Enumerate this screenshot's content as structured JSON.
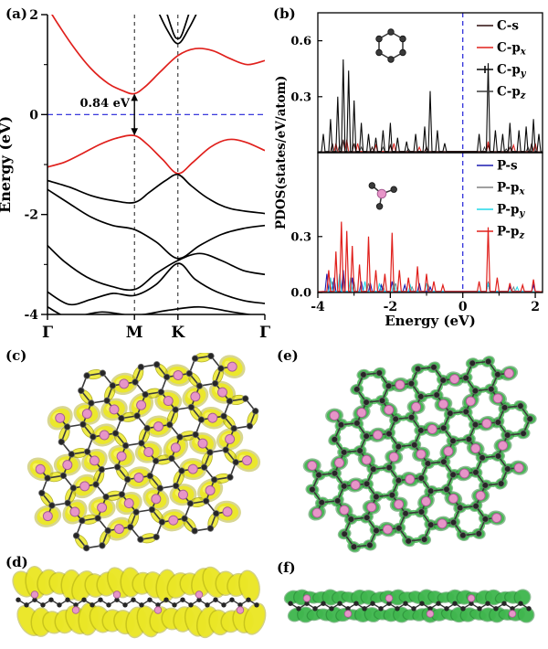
{
  "panels": {
    "a": {
      "label": "(a)"
    },
    "b": {
      "label": "(b)"
    },
    "c": {
      "label": "(c)"
    },
    "d": {
      "label": "(d)"
    },
    "e": {
      "label": "(e)"
    },
    "f": {
      "label": "(f)"
    }
  },
  "structure": {
    "atoms": {
      "carbon": {
        "name": "carbon",
        "color": "#262626"
      },
      "phosphorus": {
        "name": "phosphorus",
        "color": "#e795c8"
      }
    },
    "isosurfaces": {
      "yellow": {
        "fill": "#ece827",
        "edge": "#a8a40a",
        "hi": "#f8f565"
      },
      "green": {
        "fill": "#41b94f",
        "edge": "#1d7a2c",
        "hi": "#8fdd96"
      }
    }
  },
  "chart_data": [
    {
      "id": "band-structure",
      "type": "line",
      "ylabel": "Energy (eV)",
      "ylim": [
        -4,
        2
      ],
      "yticks": {
        "major": [
          2,
          0,
          -2,
          -4
        ],
        "minor": [
          1,
          -1,
          -3
        ]
      },
      "kpath": {
        "labels": [
          "Γ",
          "M",
          "K",
          "Γ"
        ],
        "positions": [
          0,
          0.4,
          0.6,
          1
        ]
      },
      "fermi_level": 0,
      "fermi_color": "#2020d8",
      "annotations": {
        "band_gap": {
          "text": "0.84 eV",
          "value_eV": 0.84,
          "at_k": 0.4,
          "from": -0.42,
          "to": 0.42
        }
      },
      "series": [
        {
          "name": "conduction-band",
          "color": "#e0201c",
          "k": [
            0,
            0.05,
            0.12,
            0.2,
            0.28,
            0.35,
            0.4,
            0.45,
            0.52,
            0.6,
            0.68,
            0.76,
            0.84,
            0.92,
            1
          ],
          "E": [
            2.15,
            1.8,
            1.35,
            0.92,
            0.62,
            0.47,
            0.42,
            0.56,
            0.86,
            1.18,
            1.32,
            1.28,
            1.12,
            1.0,
            1.08
          ]
        },
        {
          "name": "valence-band",
          "color": "#e0201c",
          "k": [
            0,
            0.08,
            0.16,
            0.24,
            0.32,
            0.4,
            0.46,
            0.53,
            0.6,
            0.67,
            0.75,
            0.83,
            0.91,
            1
          ],
          "E": [
            -1.05,
            -0.95,
            -0.78,
            -0.6,
            -0.47,
            -0.42,
            -0.6,
            -0.9,
            -1.18,
            -0.95,
            -0.65,
            -0.5,
            -0.55,
            -0.72
          ]
        },
        {
          "name": "black-upper-1",
          "color": "#000000",
          "k": [
            0.5,
            0.55,
            0.6,
            0.65,
            0.7
          ],
          "E": [
            2.15,
            1.7,
            1.42,
            1.72,
            2.15
          ]
        },
        {
          "name": "black-upper-2",
          "color": "#000000",
          "k": [
            0.54,
            0.58,
            0.6,
            0.62,
            0.66
          ],
          "E": [
            2.15,
            1.62,
            1.52,
            1.62,
            2.15
          ]
        },
        {
          "name": "black-valence-1",
          "color": "#000000",
          "k": [
            0,
            0.1,
            0.2,
            0.3,
            0.4,
            0.47,
            0.54,
            0.6,
            0.66,
            0.74,
            0.84,
            1
          ],
          "E": [
            -1.32,
            -1.45,
            -1.62,
            -1.72,
            -1.76,
            -1.55,
            -1.33,
            -1.2,
            -1.42,
            -1.68,
            -1.88,
            -1.98
          ]
        },
        {
          "name": "black-valence-2",
          "color": "#000000",
          "k": [
            0,
            0.1,
            0.2,
            0.3,
            0.4,
            0.5,
            0.6,
            0.7,
            0.8,
            0.9,
            1
          ],
          "E": [
            -1.5,
            -1.78,
            -2.05,
            -2.22,
            -2.3,
            -2.55,
            -2.88,
            -2.62,
            -2.4,
            -2.28,
            -2.22
          ]
        },
        {
          "name": "black-valence-3",
          "color": "#000000",
          "k": [
            0,
            0.08,
            0.18,
            0.28,
            0.4,
            0.5,
            0.6,
            0.7,
            0.8,
            0.9,
            1
          ],
          "E": [
            -2.62,
            -2.95,
            -3.25,
            -3.42,
            -3.5,
            -3.18,
            -2.92,
            -2.78,
            -2.92,
            -3.12,
            -3.2
          ]
        },
        {
          "name": "black-valence-4",
          "color": "#000000",
          "k": [
            0,
            0.1,
            0.2,
            0.3,
            0.4,
            0.5,
            0.6,
            0.68,
            0.78,
            0.9,
            1
          ],
          "E": [
            -3.55,
            -3.8,
            -3.7,
            -3.58,
            -3.62,
            -3.4,
            -2.98,
            -3.3,
            -3.55,
            -3.72,
            -3.78
          ]
        },
        {
          "name": "black-valence-5",
          "color": "#000000",
          "k": [
            0,
            0.1,
            0.25,
            0.4,
            0.55,
            0.7,
            0.85,
            1
          ],
          "E": [
            -3.85,
            -4.05,
            -3.95,
            -4.02,
            -3.92,
            -3.85,
            -3.95,
            -4.05
          ]
        }
      ]
    },
    {
      "id": "pdos-C",
      "type": "line",
      "ylabel": "PDOS(states/eV/atom)",
      "xlim": [
        -4,
        2.2
      ],
      "ylim": [
        0,
        0.75
      ],
      "fermi_color": "#2020d8",
      "yticks": [
        {
          "v": 0.6,
          "label": "0.6"
        },
        {
          "v": 0.3,
          "label": "0.3"
        }
      ],
      "inset_icon": "carbon-hexagon-ring",
      "series": [
        {
          "name": "C-s",
          "label_main": "C-s",
          "label_sub": "",
          "color": "#2d0d0d",
          "z": 1,
          "width": 1,
          "peaks": [
            [
              -3.6,
              0.05
            ],
            [
              -3.3,
              0.07
            ],
            [
              -3.0,
              0.05
            ],
            [
              -2.5,
              0.03
            ],
            [
              -2.0,
              0.04
            ],
            [
              -1.0,
              0.03
            ],
            [
              0.7,
              0.04
            ],
            [
              1.3,
              0.03
            ],
            [
              1.9,
              0.05
            ]
          ]
        },
        {
          "name": "C-px",
          "label_main": "C-p",
          "label_sub": "x",
          "color": "#e0201c",
          "z": 2,
          "width": 1,
          "peaks": [
            [
              -3.5,
              0.05
            ],
            [
              -3.2,
              0.07
            ],
            [
              -2.9,
              0.05
            ],
            [
              -2.4,
              0.04
            ],
            [
              -1.9,
              0.05
            ],
            [
              -1.2,
              0.03
            ],
            [
              0.7,
              0.06
            ],
            [
              1.4,
              0.04
            ],
            [
              2.0,
              0.05
            ]
          ]
        },
        {
          "name": "C-py",
          "label_main": "C-p",
          "label_sub": "y",
          "color": "#0a0a0a",
          "z": 4,
          "width": 1.1,
          "marker": true,
          "peaks": [
            [
              -3.85,
              0.1
            ],
            [
              -3.65,
              0.18
            ],
            [
              -3.45,
              0.3
            ],
            [
              -3.3,
              0.5
            ],
            [
              -3.15,
              0.44
            ],
            [
              -3.0,
              0.28
            ],
            [
              -2.8,
              0.16
            ],
            [
              -2.6,
              0.1
            ],
            [
              -2.4,
              0.08
            ],
            [
              -2.2,
              0.12
            ],
            [
              -2.0,
              0.16
            ],
            [
              -1.8,
              0.08
            ],
            [
              -1.55,
              0.06
            ],
            [
              -1.3,
              0.1
            ],
            [
              -1.05,
              0.14
            ],
            [
              -0.9,
              0.33
            ],
            [
              -0.7,
              0.12
            ],
            [
              -0.5,
              0.05
            ],
            [
              0.45,
              0.1
            ],
            [
              0.7,
              0.48
            ],
            [
              0.9,
              0.12
            ],
            [
              1.1,
              0.1
            ],
            [
              1.3,
              0.16
            ],
            [
              1.55,
              0.12
            ],
            [
              1.75,
              0.14
            ],
            [
              1.95,
              0.18
            ],
            [
              2.1,
              0.1
            ]
          ]
        },
        {
          "name": "C-pz",
          "label_main": "C-p",
          "label_sub": "z",
          "color": "#3c3c3c",
          "z": 3,
          "width": 0.9,
          "peaks": [
            [
              -3.4,
              0.04
            ],
            [
              -2.8,
              0.03
            ],
            [
              -2.2,
              0.03
            ],
            [
              -1.5,
              0.02
            ],
            [
              0.6,
              0.03
            ],
            [
              1.2,
              0.02
            ],
            [
              1.8,
              0.03
            ]
          ]
        }
      ]
    },
    {
      "id": "pdos-P",
      "type": "line",
      "xlabel": "Energy (eV)",
      "xlim": [
        -4,
        2.2
      ],
      "ylim": [
        0,
        0.75
      ],
      "fermi_color": "#2020d8",
      "xticks": {
        "major": [
          -4,
          -2,
          0,
          2
        ],
        "minor": [
          -3,
          -1,
          1
        ]
      },
      "yticks": [
        {
          "v": 0.3,
          "label": "0.3"
        },
        {
          "v": 0.0,
          "label": "0.0"
        }
      ],
      "inset_icon": "phosphorus-with-three-carbons",
      "series": [
        {
          "name": "P-s",
          "label_main": "P-s",
          "label_sub": "",
          "color": "#1c1cb0",
          "z": 2,
          "width": 1.1,
          "peaks": [
            [
              -3.75,
              0.1
            ],
            [
              -3.55,
              0.08
            ],
            [
              -3.3,
              0.12
            ],
            [
              -3.05,
              0.08
            ],
            [
              -2.8,
              0.06
            ],
            [
              -2.55,
              0.05
            ],
            [
              -2.25,
              0.04
            ],
            [
              -1.95,
              0.06
            ],
            [
              -1.6,
              0.04
            ],
            [
              -1.2,
              0.05
            ],
            [
              -0.9,
              0.03
            ],
            [
              0.7,
              0.05
            ],
            [
              1.3,
              0.03
            ],
            [
              1.95,
              0.04
            ]
          ]
        },
        {
          "name": "P-px",
          "label_main": "P-p",
          "label_sub": "x",
          "color": "#808080",
          "z": 1,
          "width": 0.9,
          "peaks": [
            [
              -3.6,
              0.06
            ],
            [
              -3.3,
              0.08
            ],
            [
              -3.0,
              0.06
            ],
            [
              -2.6,
              0.05
            ],
            [
              -2.2,
              0.04
            ],
            [
              -1.85,
              0.05
            ],
            [
              -1.4,
              0.03
            ],
            [
              -0.95,
              0.04
            ],
            [
              0.7,
              0.06
            ],
            [
              1.4,
              0.03
            ],
            [
              1.95,
              0.04
            ]
          ]
        },
        {
          "name": "P-py",
          "label_main": "P-p",
          "label_sub": "y",
          "color": "#20d8e8",
          "z": 3,
          "width": 1,
          "peaks": [
            [
              -3.65,
              0.08
            ],
            [
              -3.4,
              0.1
            ],
            [
              -3.1,
              0.08
            ],
            [
              -2.7,
              0.06
            ],
            [
              -2.3,
              0.05
            ],
            [
              -1.9,
              0.06
            ],
            [
              -1.45,
              0.04
            ],
            [
              -1.0,
              0.05
            ],
            [
              0.7,
              0.05
            ],
            [
              1.5,
              0.03
            ]
          ]
        },
        {
          "name": "P-pz",
          "label_main": "P-p",
          "label_sub": "z",
          "color": "#e0201c",
          "z": 4,
          "width": 1.2,
          "peaks": [
            [
              -3.7,
              0.12
            ],
            [
              -3.5,
              0.22
            ],
            [
              -3.35,
              0.38
            ],
            [
              -3.2,
              0.33
            ],
            [
              -3.05,
              0.25
            ],
            [
              -2.85,
              0.15
            ],
            [
              -2.6,
              0.3
            ],
            [
              -2.4,
              0.12
            ],
            [
              -2.15,
              0.1
            ],
            [
              -1.95,
              0.32
            ],
            [
              -1.75,
              0.12
            ],
            [
              -1.5,
              0.08
            ],
            [
              -1.25,
              0.14
            ],
            [
              -1.0,
              0.1
            ],
            [
              -0.8,
              0.06
            ],
            [
              -0.55,
              0.04
            ],
            [
              0.45,
              0.06
            ],
            [
              0.7,
              0.35
            ],
            [
              0.95,
              0.08
            ],
            [
              1.3,
              0.05
            ],
            [
              1.65,
              0.04
            ],
            [
              1.95,
              0.07
            ]
          ]
        }
      ]
    }
  ]
}
